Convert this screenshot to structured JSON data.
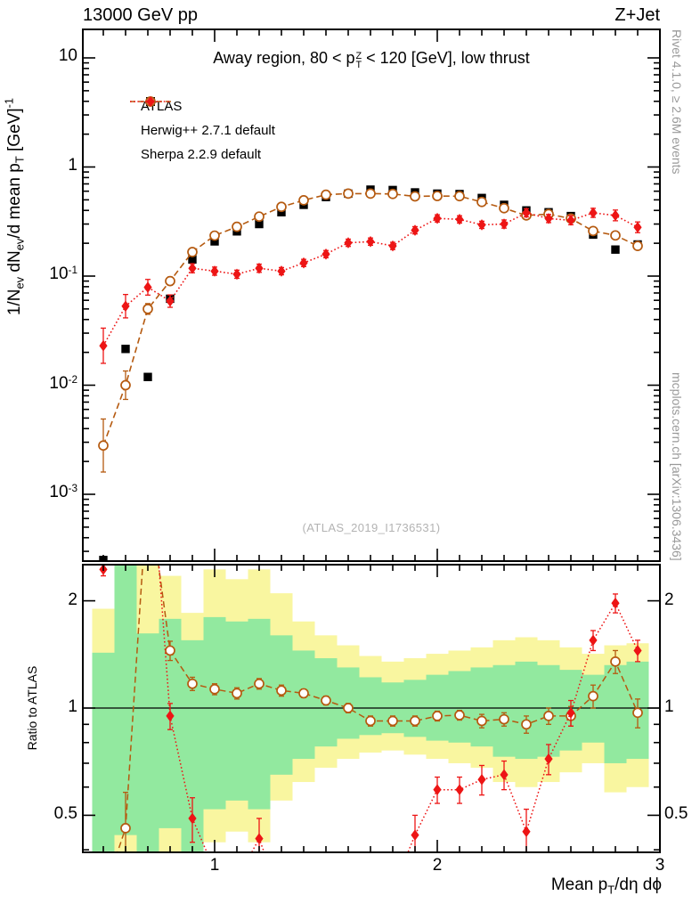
{
  "header": {
    "left_title": "13000 GeV pp",
    "right_title": "Z+Jet"
  },
  "panel_title_segments": [
    {
      "t": "Away region, 80 < p"
    },
    {
      "style": "stack",
      "sup": "Z",
      "sub": "T"
    },
    {
      "t": " < 120 [GeV], low thrust"
    }
  ],
  "watermark": "(ATLAS_2019_I1736531)",
  "side_notes": {
    "top": "Rivet 4.1.0, ≥ 2.6M events",
    "bottom": "mcplots.cern.ch [arXiv:1306.3436]"
  },
  "axes": {
    "y_label_segments": [
      {
        "t": "1/N"
      },
      {
        "t": "ev",
        "style": "sub"
      },
      {
        "t": " dN"
      },
      {
        "t": "ev",
        "style": "sub"
      },
      {
        "t": "/d mean p"
      },
      {
        "t": "T",
        "style": "sub"
      },
      {
        "t": " [GeV]"
      },
      {
        "t": "-1",
        "style": "sup"
      }
    ],
    "x_label_segments": [
      {
        "t": "Mean p"
      },
      {
        "t": "T",
        "style": "sub"
      },
      {
        "t": "/dη dϕ"
      }
    ],
    "ratio_y_label": "Ratio to ATLAS",
    "main_y_ticks": [
      {
        "mant": "10",
        "exp": "",
        "v": 10
      },
      {
        "mant": "1",
        "exp": "",
        "v": 1
      },
      {
        "mant": "10",
        "exp": "-1",
        "v": 0.1
      },
      {
        "mant": "10",
        "exp": "-2",
        "v": 0.01
      },
      {
        "mant": "10",
        "exp": "-3",
        "v": 0.001
      }
    ],
    "x_ticks": [
      {
        "label": "1",
        "v": 1
      },
      {
        "label": "2",
        "v": 2
      },
      {
        "label": "3",
        "v": 3
      }
    ],
    "ratio_y_ticks": [
      {
        "label": "2",
        "v": 2
      },
      {
        "label": "1",
        "v": 1
      },
      {
        "label": "0.5",
        "v": 0.5
      }
    ]
  },
  "legend": [
    {
      "label": "ATLAS",
      "marker": "square",
      "color": "#000000",
      "line": "none"
    },
    {
      "label": "Herwig++ 2.7.1 default",
      "marker": "open-circle",
      "color": "#b55a10",
      "line": "dashed"
    },
    {
      "label": "Sherpa 2.2.9 default",
      "marker": "diamond",
      "color": "#ed1515",
      "line": "dotted"
    }
  ],
  "colors": {
    "herwig": "#b55a10",
    "sherpa": "#ed1515",
    "atlas": "#000000",
    "band_yellow": "#f9f6a0",
    "band_green": "#92e99f"
  },
  "chart_data": {
    "type": "line",
    "title": "Away region, 80 < pT(Z) < 120 [GeV], low thrust",
    "xlabel": "Mean pT/dη dϕ",
    "ylabel": "1/Nev dNev/d mean pT [GeV]^-1",
    "ratio_ylabel": "Ratio to ATLAS",
    "x_scale": "linear",
    "y_scale_main": "log",
    "y_scale_ratio": "log",
    "xlim": [
      0.408,
      3.0
    ],
    "ylim_main": [
      0.000244,
      18.2
    ],
    "ylim_ratio": [
      0.394,
      2.526
    ],
    "bin_width": 0.1,
    "x": [
      0.5,
      0.6,
      0.7,
      0.8,
      0.9,
      1.0,
      1.1,
      1.2,
      1.3,
      1.4,
      1.5,
      1.6,
      1.7,
      1.8,
      1.9,
      2.0,
      2.1,
      2.2,
      2.3,
      2.4,
      2.5,
      2.6,
      2.7,
      2.8,
      2.9
    ],
    "series": [
      {
        "name": "ATLAS",
        "marker": "square",
        "values": [
          0.00025,
          0.0215,
          0.0119,
          0.062,
          0.142,
          0.208,
          0.257,
          0.3,
          0.385,
          0.45,
          0.53,
          0.57,
          0.62,
          0.615,
          0.585,
          0.57,
          0.565,
          0.52,
          0.45,
          0.4,
          0.385,
          0.355,
          0.24,
          0.175,
          0.195
        ],
        "yerr_rel": [
          0,
          0,
          0,
          0,
          0,
          0,
          0,
          0,
          0,
          0,
          0,
          0,
          0,
          0,
          0,
          0,
          0,
          0,
          0,
          0,
          0,
          0,
          0,
          0,
          0
        ]
      },
      {
        "name": "Herwig++ 2.7.1 default",
        "marker": "open-circle",
        "values": [
          0.0028,
          0.01,
          0.05,
          0.09,
          0.166,
          0.235,
          0.283,
          0.351,
          0.431,
          0.495,
          0.557,
          0.57,
          0.57,
          0.566,
          0.538,
          0.542,
          0.54,
          0.478,
          0.419,
          0.36,
          0.37,
          0.337,
          0.259,
          0.236,
          0.189
        ],
        "yerr_rel": [
          0.75,
          0.35,
          0.12,
          0.09,
          0.05,
          0.04,
          0.03,
          0.03,
          0.03,
          0.02,
          0.02,
          0.02,
          0.02,
          0.02,
          0.02,
          0.02,
          0.02,
          0.03,
          0.03,
          0.04,
          0.04,
          0.05,
          0.06,
          0.07,
          0.08
        ]
      },
      {
        "name": "Sherpa 2.2.9 default",
        "marker": "diamond",
        "values": [
          0.023,
          0.053,
          0.079,
          0.059,
          0.118,
          0.111,
          0.104,
          0.118,
          0.111,
          0.132,
          0.159,
          0.202,
          0.207,
          0.189,
          0.263,
          0.338,
          0.331,
          0.295,
          0.3,
          0.38,
          0.337,
          0.325,
          0.38,
          0.36,
          0.28
        ],
        "yerr_rel": [
          0.45,
          0.28,
          0.18,
          0.14,
          0.1,
          0.09,
          0.09,
          0.09,
          0.08,
          0.08,
          0.08,
          0.08,
          0.08,
          0.08,
          0.08,
          0.08,
          0.08,
          0.08,
          0.09,
          0.09,
          0.09,
          0.1,
          0.1,
          0.12,
          0.12
        ]
      }
    ],
    "ratio": {
      "reference": "ATLAS",
      "herwig": [
        0.3,
        0.46,
        4.2,
        1.45,
        1.17,
        1.13,
        1.1,
        1.17,
        1.12,
        1.1,
        1.05,
        1.0,
        0.92,
        0.92,
        0.92,
        0.95,
        0.955,
        0.92,
        0.93,
        0.9,
        0.95,
        0.95,
        1.08,
        1.35,
        0.97
      ],
      "herwig_err_abs": [
        0,
        0.12,
        0,
        0.09,
        0.05,
        0.04,
        0.04,
        0.04,
        0.04,
        0.03,
        0.03,
        0.03,
        0.03,
        0.03,
        0.03,
        0.03,
        0.03,
        0.04,
        0.04,
        0.05,
        0.05,
        0.06,
        0.08,
        0.1,
        0.09
      ],
      "sherpa": [
        2.45,
        6.0,
        6.6,
        0.95,
        0.49,
        0.35,
        0.33,
        0.43,
        0.29,
        0.29,
        0.3,
        0.35,
        0.33,
        0.31,
        0.44,
        0.59,
        0.59,
        0.63,
        0.65,
        0.45,
        0.72,
        0.97,
        1.55,
        1.97,
        1.45
      ],
      "sherpa_err_abs": [
        0.1,
        0,
        0,
        0.08,
        0.07,
        0,
        0,
        0.06,
        0,
        0,
        0,
        0,
        0,
        0,
        0.06,
        0.05,
        0.05,
        0.06,
        0.06,
        0.07,
        0.07,
        0.08,
        0.1,
        0.12,
        0.1
      ],
      "band_yellow_lo": [
        0.3,
        0.3,
        0.3,
        0.3,
        0.3,
        0.42,
        0.45,
        0.42,
        0.55,
        0.62,
        0.68,
        0.72,
        0.75,
        0.76,
        0.74,
        0.72,
        0.7,
        0.68,
        0.62,
        0.6,
        0.62,
        0.66,
        0.7,
        0.58,
        0.6
      ],
      "band_yellow_hi": [
        1.9,
        2.6,
        2.6,
        2.35,
        1.85,
        2.45,
        2.3,
        2.45,
        2.1,
        1.75,
        1.6,
        1.5,
        1.4,
        1.35,
        1.38,
        1.42,
        1.45,
        1.48,
        1.55,
        1.58,
        1.55,
        1.48,
        1.42,
        1.5,
        1.52
      ],
      "band_green_lo": [
        0.3,
        0.44,
        0.3,
        0.46,
        0.3,
        0.52,
        0.55,
        0.52,
        0.65,
        0.72,
        0.78,
        0.82,
        0.84,
        0.85,
        0.83,
        0.81,
        0.8,
        0.78,
        0.73,
        0.72,
        0.73,
        0.76,
        0.8,
        0.7,
        0.72
      ],
      "band_green_hi": [
        1.43,
        2.6,
        1.62,
        1.78,
        1.55,
        1.8,
        1.75,
        1.78,
        1.6,
        1.45,
        1.38,
        1.3,
        1.22,
        1.18,
        1.2,
        1.24,
        1.27,
        1.3,
        1.32,
        1.35,
        1.32,
        1.28,
        1.24,
        1.32,
        1.35
      ]
    },
    "legend_position": "top-left-inside",
    "grid": false
  }
}
